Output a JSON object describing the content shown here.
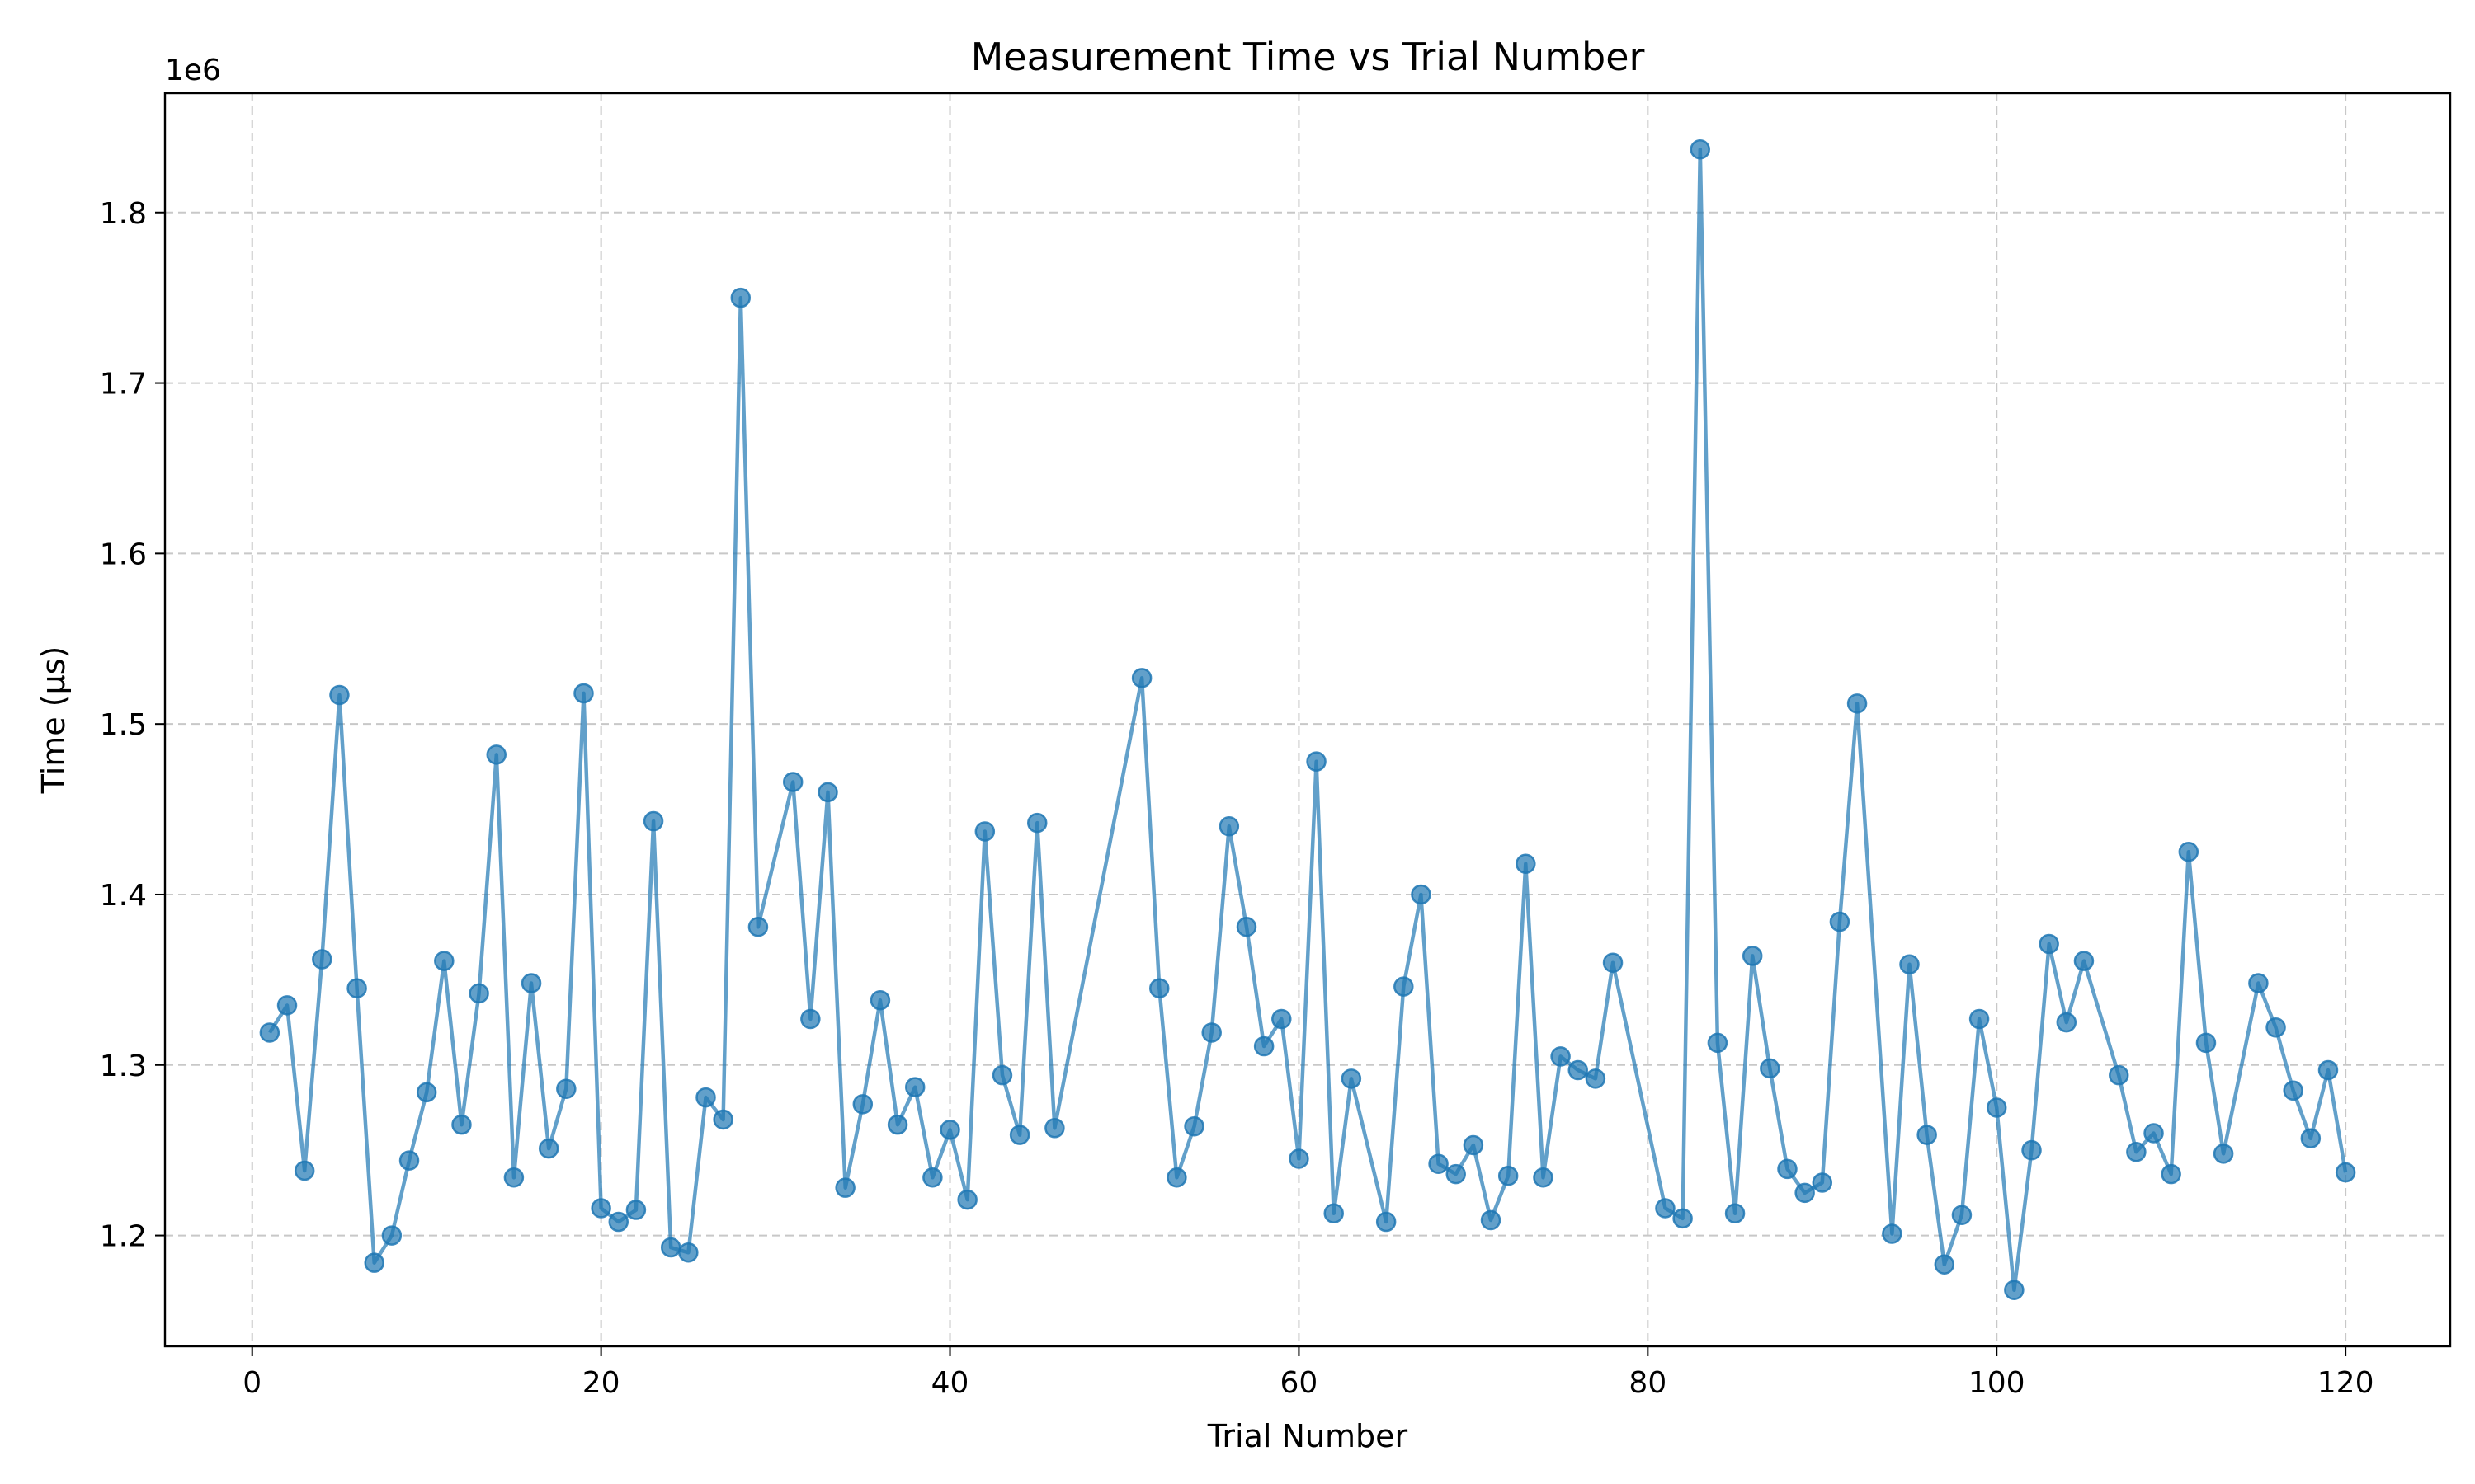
{
  "chart_data": {
    "type": "line",
    "title": "Measurement Time vs Trial Number",
    "xlabel": "Trial Number",
    "ylabel": "Time (µs)",
    "y_offset_label": "1e6",
    "xlim": [
      -5,
      126
    ],
    "ylim": [
      1135000,
      1870000
    ],
    "xticks": [
      0,
      20,
      40,
      60,
      80,
      100,
      120
    ],
    "yticks": [
      1200000,
      1300000,
      1400000,
      1500000,
      1600000,
      1700000,
      1800000
    ],
    "ytick_labels": [
      "1.2",
      "1.3",
      "1.4",
      "1.5",
      "1.6",
      "1.7",
      "1.8"
    ],
    "grid": true,
    "legend": "none",
    "color": "#1f77b4",
    "series": [
      {
        "x": [
          1,
          2,
          3,
          4,
          5,
          6,
          7,
          8,
          9,
          10,
          11,
          12,
          13,
          14,
          15,
          16,
          17,
          18,
          19,
          20,
          21,
          22,
          23,
          24,
          25,
          26,
          27,
          28,
          29,
          31,
          32,
          33,
          34,
          35,
          36,
          37,
          38,
          39,
          40,
          41,
          42,
          43,
          44,
          45,
          46,
          51,
          52,
          53,
          54,
          55,
          56,
          57,
          58,
          59,
          60,
          61,
          62,
          63,
          65,
          66,
          67,
          68,
          69,
          70,
          71,
          72,
          73,
          74,
          75,
          76,
          77,
          78,
          81,
          82,
          83,
          84,
          85,
          86,
          87,
          88,
          89,
          90,
          91,
          92,
          94,
          95,
          96,
          97,
          98,
          99,
          100,
          101,
          102,
          103,
          104,
          105,
          107,
          108,
          109,
          110,
          111,
          112,
          113,
          115,
          116,
          117,
          118,
          119,
          120
        ],
        "y": [
          1319000,
          1335000,
          1238000,
          1362000,
          1517000,
          1345000,
          1184000,
          1200000,
          1244000,
          1284000,
          1361000,
          1265000,
          1342000,
          1482000,
          1234000,
          1348000,
          1251000,
          1286000,
          1518000,
          1216000,
          1208000,
          1215000,
          1443000,
          1193000,
          1190000,
          1281000,
          1268000,
          1750000,
          1381000,
          1466000,
          1327000,
          1460000,
          1228000,
          1277000,
          1338000,
          1265000,
          1287000,
          1234000,
          1262000,
          1221000,
          1437000,
          1294000,
          1259000,
          1442000,
          1263000,
          1527000,
          1345000,
          1234000,
          1264000,
          1319000,
          1440000,
          1381000,
          1311000,
          1327000,
          1245000,
          1478000,
          1213000,
          1292000,
          1208000,
          1346000,
          1400000,
          1242000,
          1236000,
          1253000,
          1209000,
          1235000,
          1418000,
          1234000,
          1305000,
          1297000,
          1292000,
          1360000,
          1216000,
          1210000,
          1837000,
          1313000,
          1213000,
          1364000,
          1298000,
          1239000,
          1225000,
          1231000,
          1384000,
          1512000,
          1201000,
          1359000,
          1259000,
          1183000,
          1212000,
          1327000,
          1275000,
          1168000,
          1250000,
          1371000,
          1325000,
          1361000,
          1294000,
          1249000,
          1260000,
          1236000,
          1425000,
          1313000,
          1248000,
          1348000,
          1322000,
          1285000,
          1257000,
          1297000,
          1237000
        ]
      }
    ]
  }
}
